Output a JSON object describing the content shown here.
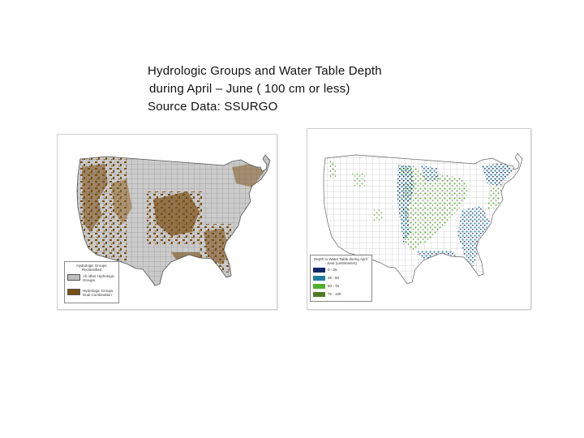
{
  "header": {
    "line1": "Hydrologic Groups and Water Table Depth",
    "line2": "during April – June ( 100 cm or less)",
    "line3": "Source Data: SSURGO"
  },
  "maps": {
    "left": {
      "legend": {
        "title": "Hydrologic Groups Reclassified",
        "items": [
          {
            "label": "All other Hydrologic Groups",
            "color": "#bdbdbd"
          },
          {
            "label": "Hydrologic Groups Dual Combination",
            "color": "#7a4f15"
          }
        ]
      }
    },
    "right": {
      "legend": {
        "title": "Depth to Water Table during April - June (centimeters)",
        "items": [
          {
            "label": "0 - 25",
            "color": "#0d2a6b"
          },
          {
            "label": "25 - 50",
            "color": "#1f7ea3"
          },
          {
            "label": "50 - 75",
            "color": "#4fb02a"
          },
          {
            "label": "75 - 100",
            "color": "#4f7a23"
          }
        ]
      }
    }
  }
}
